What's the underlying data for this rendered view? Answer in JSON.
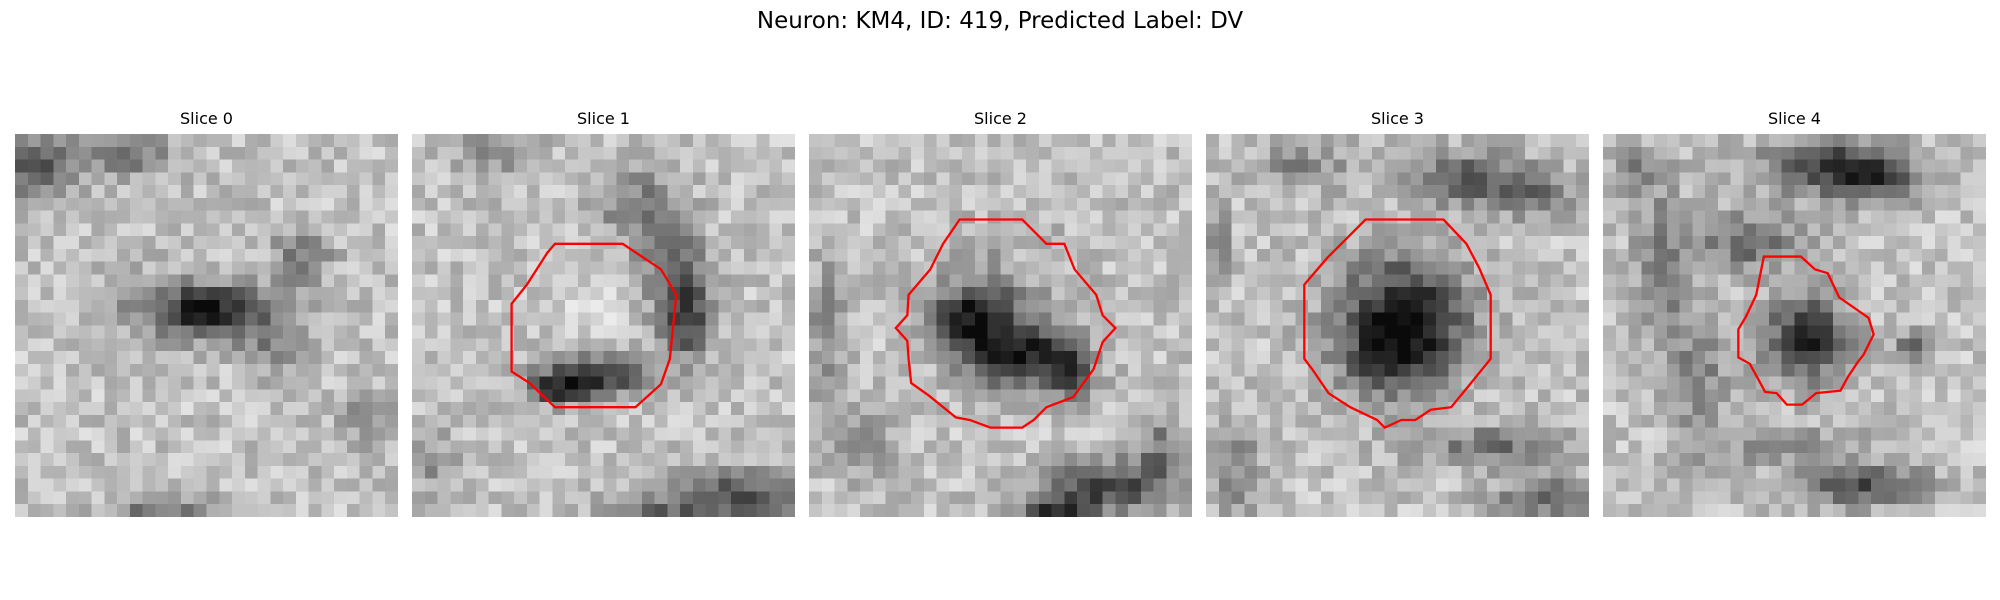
{
  "figure": {
    "title": "Neuron: KM4, ID: 419, Predicted Label: DV"
  },
  "contour_color": "#ff0000",
  "colormap": "grayscale",
  "slices": [
    {
      "title": "Slice 0",
      "has_contour": false
    },
    {
      "title": "Slice 1",
      "has_contour": true
    },
    {
      "title": "Slice 2",
      "has_contour": true
    },
    {
      "title": "Slice 3",
      "has_contour": true
    },
    {
      "title": "Slice 4",
      "has_contour": true
    }
  ]
}
